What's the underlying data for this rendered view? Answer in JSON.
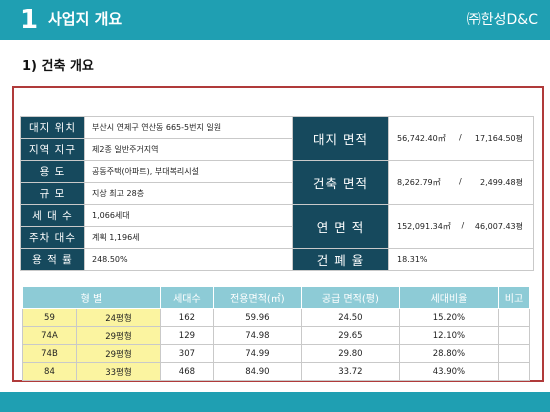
{
  "header": {
    "section_number": "1",
    "title": "사업지 개요",
    "brand": "㈜한성D&C"
  },
  "subtitle": "1) 건축 개요",
  "info": {
    "rows": [
      {
        "label": "대지 위치",
        "value": "부산시 연제구 연산동 665-5번지 일원"
      },
      {
        "label": "지역 지구",
        "value": "제2종 일반주거지역"
      },
      {
        "label": "용          도",
        "value": "공동주택(아파트), 부대복리시설"
      },
      {
        "label": "규          모",
        "value": "지상 최고 28층"
      },
      {
        "label": "세 대 수",
        "value": "1,066세대"
      },
      {
        "label": "주차 대수",
        "value": "계획 1,196세"
      },
      {
        "label": "용 적 률",
        "value": "248.50%"
      }
    ],
    "site_area": {
      "label": "대지 면적",
      "sqm": "56,742.40㎡",
      "sep": "/",
      "pyeong": "17,164.50평"
    },
    "building_area": {
      "label": "건축 면적",
      "sqm": "8,262.79㎡",
      "sep": "/",
      "pyeong": "2,499.48평"
    },
    "floor_area": {
      "label": "연 면 적",
      "sqm": "152,091.34㎡",
      "sep": "/",
      "pyeong": "46,007.43평"
    },
    "coverage": {
      "label": "건 폐 율",
      "value": "18.31%"
    }
  },
  "units": {
    "headers": [
      "형   별",
      "세대수",
      "전용면적(㎡)",
      "공급 면적(평)",
      "세대비율",
      "비고"
    ],
    "rows": [
      {
        "type": "59",
        "pyeong": "24평형",
        "households": "162",
        "exclusive": "59.96",
        "supply": "24.50",
        "ratio": "15.20%"
      },
      {
        "type": "74A",
        "pyeong": "29평형",
        "households": "129",
        "exclusive": "74.98",
        "supply": "29.65",
        "ratio": "12.10%"
      },
      {
        "type": "74B",
        "pyeong": "29평형",
        "households": "307",
        "exclusive": "74.99",
        "supply": "29.80",
        "ratio": "28.80%"
      },
      {
        "type": "84",
        "pyeong": "33평형",
        "households": "468",
        "exclusive": "84.90",
        "supply": "33.72",
        "ratio": "43.90%"
      }
    ]
  },
  "colors": {
    "teal": "#1f9fb2",
    "navy": "#16495d",
    "frame": "#b03a3a",
    "highlight": "#fbf4a0",
    "header_light": "#8dcbd6"
  }
}
